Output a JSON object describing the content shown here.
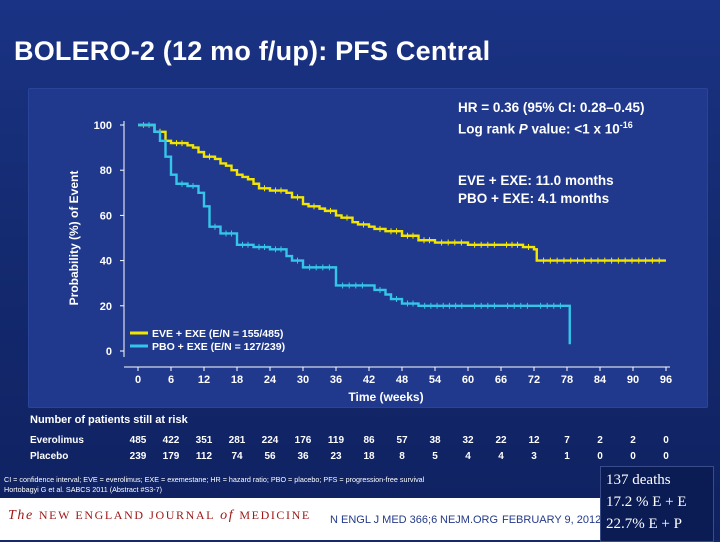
{
  "slide": {
    "title": "BOLERO-2 (12 mo f/up): PFS Central",
    "colors": {
      "background": "#14286e",
      "panel": "#20398c",
      "eve": "#f2e600",
      "pbo": "#34c6e8"
    }
  },
  "chart_data": {
    "type": "line",
    "step": true,
    "ylabel": "Probability (%) of Event",
    "xlabel": "Time (weeks)",
    "xlim": [
      0,
      96
    ],
    "ylim": [
      0,
      100
    ],
    "xticks": [
      "0",
      "6",
      "12",
      "18",
      "24",
      "30",
      "36",
      "42",
      "48",
      "54",
      "60",
      "66",
      "72",
      "78",
      "84",
      "90",
      "96"
    ],
    "yticks": [
      "0",
      "20",
      "40",
      "60",
      "80",
      "100"
    ],
    "legend_position": "bottom-left",
    "stats": {
      "hr": "HR = 0.36 (95% CI: 0.28–0.45)",
      "logrank_prefix": "Log rank ",
      "logrank_p": "P",
      "logrank_mid": " value: <1 x 10",
      "logrank_exp": "-16",
      "eve_median": "EVE + EXE: 11.0 months",
      "pbo_median": "PBO + EXE: 4.1 months"
    },
    "series": [
      {
        "name": "EVE + EXE (E/N = 155/485)",
        "color": "#f2e600",
        "x": [
          0,
          3,
          5,
          6,
          9,
          10,
          11,
          12,
          14,
          15,
          16,
          17,
          18,
          19,
          20,
          21,
          22,
          24,
          27,
          28,
          30,
          31,
          33,
          34,
          36,
          37,
          39,
          40,
          42,
          43,
          45,
          48,
          51,
          54,
          60,
          66,
          70,
          72,
          72.5,
          96
        ],
        "y": [
          100,
          97,
          93,
          92,
          91,
          90,
          88,
          86,
          85,
          83,
          82,
          80,
          78,
          77,
          76,
          74,
          72,
          71,
          70,
          68,
          65,
          64,
          63,
          62,
          60,
          59,
          57,
          56,
          55,
          54,
          53,
          51,
          49,
          48,
          47,
          47,
          46,
          45,
          40,
          40
        ]
      },
      {
        "name": "PBO + EXE (E/N = 127/239)",
        "color": "#34c6e8",
        "x": [
          0,
          3,
          4,
          5,
          6,
          7,
          9,
          11,
          12,
          13,
          15,
          18,
          21,
          24,
          27,
          28,
          30,
          36,
          42,
          43,
          45,
          46,
          48,
          51,
          60,
          66,
          72,
          78,
          78.5
        ],
        "y": [
          100,
          97,
          93,
          86,
          78,
          74,
          73,
          70,
          64,
          55,
          52,
          47,
          46,
          45,
          42,
          40,
          37,
          29,
          29,
          27,
          25,
          23,
          21,
          20,
          20,
          20,
          20,
          20,
          3
        ]
      }
    ],
    "risk_table": {
      "title": "Number of patients still at risk",
      "times": [
        0,
        6,
        12,
        18,
        24,
        30,
        36,
        42,
        48,
        54,
        60,
        66,
        72,
        78,
        84,
        90,
        96
      ],
      "rows": [
        {
          "label": "Everolimus",
          "values": [
            "485",
            "422",
            "351",
            "281",
            "224",
            "176",
            "119",
            "86",
            "57",
            "38",
            "32",
            "22",
            "12",
            "7",
            "2",
            "2",
            "0"
          ]
        },
        {
          "label": "Placebo",
          "values": [
            "239",
            "179",
            "112",
            "74",
            "56",
            "36",
            "23",
            "18",
            "8",
            "5",
            "4",
            "4",
            "3",
            "1",
            "0",
            "0",
            "0"
          ]
        }
      ]
    }
  },
  "footer": {
    "abbreviations": "CI = confidence interval; EVE = everolimus; EXE = exemestane; HR = hazard ratio; PBO = placebo; PFS = progression-free survival",
    "reference": "Hortobagyi G et al. SABCS 2011 (Abstract #S3-7)",
    "journal_the": "The ",
    "journal_name": "NEW ENGLAND JOURNAL",
    "journal_of": " of ",
    "journal_med": "MEDICINE",
    "citation_1": "N ENGL J MED 366;6",
    "citation_2": "NEJM.ORG",
    "citation_3": "FEBRUARY 9, 2012"
  },
  "notes": {
    "line1": "137 deaths",
    "line2": "17.2 % E + E",
    "line3": "22.7%  E + P"
  }
}
